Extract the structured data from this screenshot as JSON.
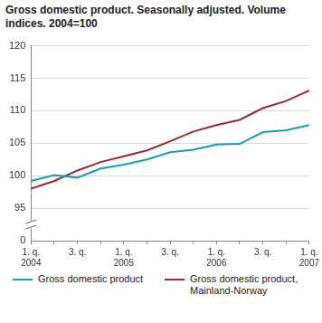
{
  "chart_data": {
    "type": "line",
    "title": "Gross domestic product. Seasonally adjusted. Volume indices. 2004=100",
    "categories": [
      [
        "1. q.",
        "2004"
      ],
      null,
      "3. q.",
      null,
      [
        "1. q.",
        "2005"
      ],
      null,
      "3. q.",
      null,
      [
        "1. q.",
        "2006"
      ],
      null,
      "3. q.",
      null,
      [
        "1. q.",
        "2007"
      ]
    ],
    "series": [
      {
        "name": "Gross domestic product",
        "color": "#1b9bb4",
        "values": [
          99.2,
          100.1,
          99.7,
          101.1,
          101.7,
          102.5,
          103.6,
          104.0,
          104.8,
          104.9,
          106.7,
          107.0,
          107.8
        ]
      },
      {
        "name": "Gross domestic product, Mainland-Norway",
        "color": "#9e2a2b",
        "values": [
          98.0,
          99.2,
          100.8,
          102.1,
          103.0,
          103.9,
          105.3,
          106.8,
          107.8,
          108.6,
          110.4,
          111.5,
          113.1
        ]
      }
    ],
    "ylim": [
      0,
      120
    ],
    "yticks": [
      0,
      95,
      100,
      105,
      110,
      115,
      120
    ],
    "grid": true,
    "legend": "bottom"
  }
}
